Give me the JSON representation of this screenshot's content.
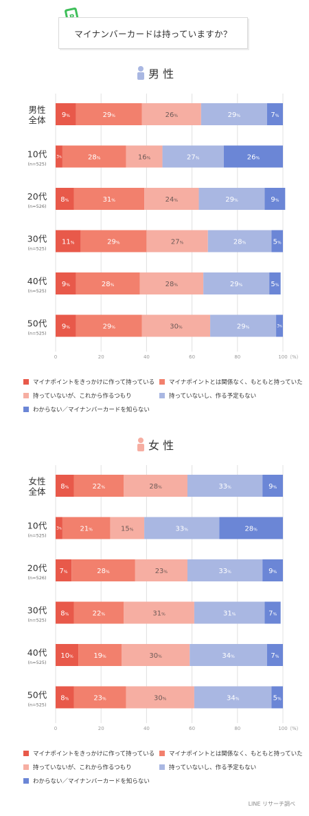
{
  "question": "マイナンバーカードは持っていますか？",
  "source": "LINE リサーチ調べ",
  "colors": [
    "#e8594a",
    "#f2806d",
    "#f6aea2",
    "#a9b7e2",
    "#6b86d6"
  ],
  "header_colors": {
    "male": "#a9b7e2",
    "female": "#f6aea2"
  },
  "legend": [
    "マイナポイントをきっかけに作って持っている",
    "マイナポイントとは関係なく、もともと持っていた",
    "持っていないが、これから作るつもり",
    "持っていないし、作る予定もない",
    "わからない／マイナンバーカードを知らない"
  ],
  "chart_data": [
    {
      "type": "bar",
      "orientation": "horizontal-stacked",
      "title": "男 性",
      "xlabel": "",
      "ylabel": "",
      "xlim": [
        0,
        100
      ],
      "xticks": [
        0,
        20,
        40,
        60,
        80,
        100
      ],
      "unit": "（%）",
      "value_suffix": "%",
      "categories": [
        {
          "label": "男性\n全体",
          "n": ""
        },
        {
          "label": "10代",
          "n": "(n=525)"
        },
        {
          "label": "20代",
          "n": "(n=526)"
        },
        {
          "label": "30代",
          "n": "(n=525)"
        },
        {
          "label": "40代",
          "n": "(n=525)"
        },
        {
          "label": "50代",
          "n": "(n=525)"
        }
      ],
      "series": [
        {
          "name": "マイナポイントをきっかけに作って持っている",
          "values": [
            9,
            3,
            8,
            11,
            9,
            9
          ]
        },
        {
          "name": "マイナポイントとは関係なく、もともと持っていた",
          "values": [
            29,
            28,
            31,
            29,
            28,
            29
          ]
        },
        {
          "name": "持っていないが、これから作るつもり",
          "values": [
            26,
            16,
            24,
            27,
            28,
            30
          ]
        },
        {
          "name": "持っていないし、作る予定もない",
          "values": [
            29,
            27,
            29,
            28,
            29,
            29
          ]
        },
        {
          "name": "わからない／マイナンバーカードを知らない",
          "values": [
            7,
            26,
            9,
            5,
            5,
            3
          ]
        }
      ]
    },
    {
      "type": "bar",
      "orientation": "horizontal-stacked",
      "title": "女 性",
      "xlabel": "",
      "ylabel": "",
      "xlim": [
        0,
        100
      ],
      "xticks": [
        0,
        20,
        40,
        60,
        80,
        100
      ],
      "unit": "（%）",
      "value_suffix": "%",
      "categories": [
        {
          "label": "女性\n全体",
          "n": ""
        },
        {
          "label": "10代",
          "n": "(n=525)"
        },
        {
          "label": "20代",
          "n": "(n=526)"
        },
        {
          "label": "30代",
          "n": "(n=525)"
        },
        {
          "label": "40代",
          "n": "(n=525)"
        },
        {
          "label": "50代",
          "n": "(n=525)"
        }
      ],
      "series": [
        {
          "name": "マイナポイントをきっかけに作って持っている",
          "values": [
            8,
            3,
            7,
            8,
            10,
            8
          ]
        },
        {
          "name": "マイナポイントとは関係なく、もともと持っていた",
          "values": [
            22,
            21,
            28,
            22,
            19,
            23
          ]
        },
        {
          "name": "持っていないが、これから作るつもり",
          "values": [
            28,
            15,
            23,
            31,
            30,
            30
          ]
        },
        {
          "name": "持っていないし、作る予定もない",
          "values": [
            33,
            33,
            33,
            31,
            34,
            34
          ]
        },
        {
          "name": "わからない／マイナンバーカードを知らない",
          "values": [
            9,
            28,
            9,
            7,
            7,
            5
          ]
        }
      ]
    }
  ]
}
